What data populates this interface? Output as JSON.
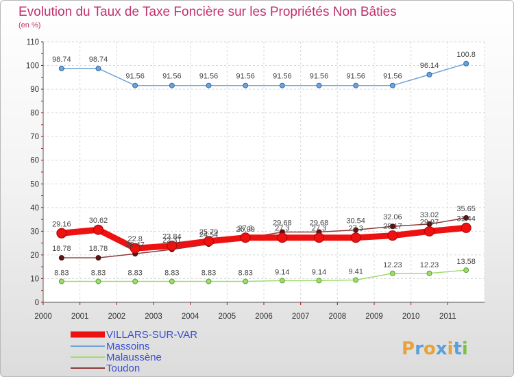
{
  "chart_data": {
    "type": "line",
    "title": "Evolution du Taux de Taxe Foncière sur les Propriétés Non Bâties",
    "subtitle": "(en %)",
    "xlabel": "",
    "ylabel": "",
    "ylim": [
      0,
      110
    ],
    "yticks": [
      "0",
      "10",
      "20",
      "30",
      "40",
      "50",
      "60",
      "70",
      "80",
      "90",
      "100",
      "110"
    ],
    "categories": [
      "2000",
      "2001",
      "2002",
      "2003",
      "2004",
      "2005",
      "2006",
      "2007",
      "2008",
      "2009",
      "2010",
      "2011"
    ],
    "grid": true,
    "legend_position": "bottom-left",
    "series": [
      {
        "name": "VILLARS-SUR-VAR",
        "color": "#ee1111",
        "values": [
          29.16,
          30.62,
          22.8,
          23.84,
          25.79,
          27.3,
          27.3,
          27.3,
          27.3,
          28.17,
          29.97,
          31.44
        ],
        "labels": [
          "29.16",
          "30.62",
          "22.8",
          "23.84",
          "25.79",
          "27.3",
          "27.3",
          "27.3",
          "27.3",
          "28.17",
          "29.97",
          "31.44"
        ]
      },
      {
        "name": "Massoins",
        "color": "#6fa3d8",
        "values": [
          98.74,
          98.74,
          91.56,
          91.56,
          91.56,
          91.56,
          91.56,
          91.56,
          91.56,
          91.56,
          96.14,
          100.8
        ],
        "labels": [
          "98.74",
          "98.74",
          "91.56",
          "91.56",
          "91.56",
          "91.56",
          "91.56",
          "91.56",
          "91.56",
          "91.56",
          "96.14",
          "100.8"
        ]
      },
      {
        "name": "Malaussène",
        "color": "#9fdc6e",
        "values": [
          8.83,
          8.83,
          8.83,
          8.83,
          8.83,
          8.83,
          9.14,
          9.14,
          9.41,
          12.23,
          12.23,
          13.58
        ],
        "labels": [
          "8.83",
          "8.83",
          "8.83",
          "8.83",
          "8.83",
          "8.83",
          "9.14",
          "9.14",
          "9.41",
          "12.23",
          "12.23",
          "13.58"
        ]
      },
      {
        "name": "Toudon",
        "color": "#8b3a3a",
        "values": [
          18.78,
          18.78,
          20.47,
          22.31,
          24.54,
          26.99,
          29.68,
          29.68,
          30.54,
          32.06,
          33.02,
          35.65
        ],
        "labels": [
          "18.78",
          "18.78",
          "20.47",
          "22.31",
          "24.54",
          "26.99",
          "29.68",
          "29.68",
          "30.54",
          "32.06",
          "33.02",
          "35.65"
        ]
      }
    ]
  },
  "logo": {
    "text": "Proxiti",
    "letters": [
      "P",
      "r",
      "o",
      "x",
      "i",
      "t",
      "i"
    ],
    "colors": [
      "#e8a23a",
      "#5aa0d8",
      "#e8a23a",
      "#5aa0d8",
      "#e8a23a",
      "#5aa0d8",
      "#7cc043"
    ]
  }
}
